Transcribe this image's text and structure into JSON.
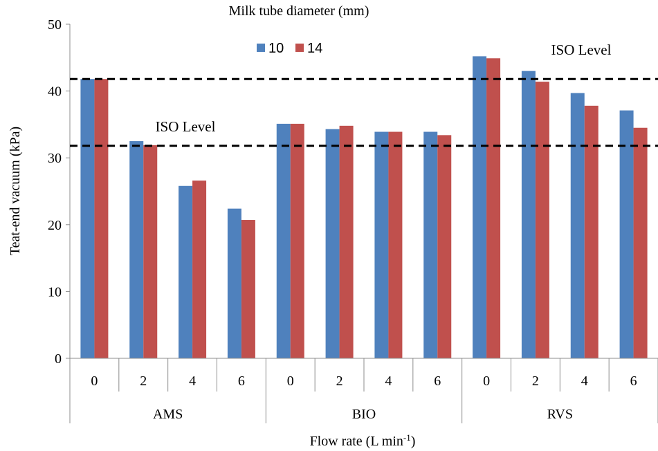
{
  "chart_data": {
    "type": "bar",
    "title": "Milk tube diameter (mm)",
    "xlabel": "Flow rate (L min",
    "xlabel_sup": "-1",
    "xlabel_end": ")",
    "ylabel": "Teat-end vacuum (kPa)",
    "ylim": [
      0,
      50
    ],
    "yticks": [
      "0",
      "10",
      "20",
      "30",
      "40",
      "50"
    ],
    "groups": [
      "AMS",
      "BIO",
      "RVS"
    ],
    "categories": [
      "0",
      "2",
      "4",
      "6",
      "0",
      "2",
      "4",
      "6",
      "0",
      "2",
      "4",
      "6"
    ],
    "series": [
      {
        "name": "10",
        "color": "#4f81bd",
        "values": [
          41.8,
          32.5,
          25.8,
          22.4,
          35.1,
          34.3,
          33.9,
          33.9,
          45.2,
          43.0,
          39.7,
          37.1
        ]
      },
      {
        "name": "14",
        "color": "#c0504d",
        "values": [
          41.8,
          31.9,
          26.6,
          20.7,
          35.1,
          34.8,
          33.9,
          33.4,
          44.9,
          41.4,
          37.8,
          34.5
        ]
      }
    ],
    "reference_lines": [
      {
        "label": "ISO Level",
        "value": 41.8
      },
      {
        "label": "ISO Level",
        "value": 31.8
      }
    ],
    "grid": false,
    "legend_position": "top-center"
  }
}
